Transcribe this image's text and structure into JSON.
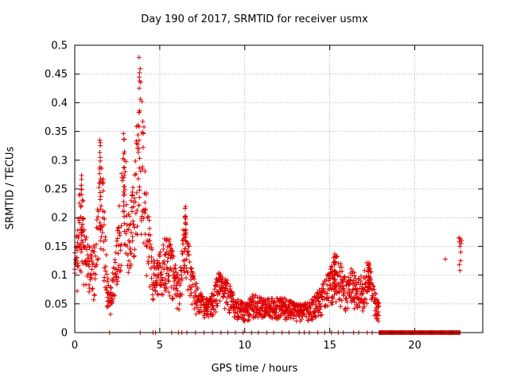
{
  "chart_data": {
    "type": "scatter",
    "title": "Day 190 of 2017, SRMTID for receiver usmx",
    "xlabel": "GPS time / hours",
    "ylabel": "SRMTID / TECUs",
    "xlim": [
      0,
      24
    ],
    "ylim": [
      0,
      0.5
    ],
    "grid": true,
    "marker": "+",
    "color": "#dd0000",
    "xticks": [
      0,
      5,
      10,
      15,
      20
    ],
    "yticks": [
      0,
      0.05,
      0.1,
      0.15,
      0.2,
      0.25,
      0.3,
      0.35,
      0.4,
      0.45,
      0.5
    ],
    "xtick_labels": [
      "0",
      "5",
      "10",
      "15",
      "20"
    ],
    "ytick_labels": [
      "0",
      "0.05",
      "0.1",
      "0.15",
      "0.2",
      "0.25",
      "0.3",
      "0.35",
      "0.4",
      "0.45",
      "0.5"
    ],
    "envelope": [
      [
        0.0,
        0.14
      ],
      [
        0.2,
        0.2
      ],
      [
        0.4,
        0.3
      ],
      [
        0.6,
        0.18
      ],
      [
        0.9,
        0.15
      ],
      [
        1.2,
        0.16
      ],
      [
        1.5,
        0.34
      ],
      [
        1.7,
        0.26
      ],
      [
        1.9,
        0.1
      ],
      [
        2.1,
        0.08
      ],
      [
        2.3,
        0.12
      ],
      [
        2.6,
        0.22
      ],
      [
        2.9,
        0.37
      ],
      [
        3.2,
        0.2
      ],
      [
        3.5,
        0.28
      ],
      [
        3.8,
        0.48
      ],
      [
        4.0,
        0.4
      ],
      [
        4.2,
        0.26
      ],
      [
        4.5,
        0.15
      ],
      [
        4.8,
        0.12
      ],
      [
        5.1,
        0.15
      ],
      [
        5.5,
        0.18
      ],
      [
        5.9,
        0.12
      ],
      [
        6.2,
        0.1
      ],
      [
        6.5,
        0.24
      ],
      [
        6.8,
        0.12
      ],
      [
        7.2,
        0.08
      ],
      [
        7.6,
        0.06
      ],
      [
        8.0,
        0.06
      ],
      [
        8.5,
        0.11
      ],
      [
        9.0,
        0.09
      ],
      [
        9.5,
        0.06
      ],
      [
        10.0,
        0.05
      ],
      [
        10.5,
        0.07
      ],
      [
        11.0,
        0.06
      ],
      [
        11.5,
        0.06
      ],
      [
        12.0,
        0.06
      ],
      [
        12.5,
        0.06
      ],
      [
        13.0,
        0.05
      ],
      [
        13.5,
        0.05
      ],
      [
        14.0,
        0.06
      ],
      [
        14.5,
        0.08
      ],
      [
        15.0,
        0.11
      ],
      [
        15.3,
        0.14
      ],
      [
        15.7,
        0.12
      ],
      [
        16.0,
        0.09
      ],
      [
        16.3,
        0.12
      ],
      [
        16.6,
        0.09
      ],
      [
        17.0,
        0.11
      ],
      [
        17.3,
        0.13
      ],
      [
        17.6,
        0.08
      ],
      [
        17.9,
        0.05
      ]
    ],
    "zero_hours": [
      2.05,
      3.85,
      4.6,
      4.75,
      5.7,
      6.1,
      6.3,
      6.6,
      7.1,
      7.6,
      8.1,
      8.6,
      9.0,
      9.45,
      9.9,
      10.4,
      10.8,
      11.3,
      11.7,
      12.2,
      12.6,
      13.2,
      13.5,
      13.8,
      14.3,
      14.7,
      15.1,
      15.5,
      15.8,
      16.4,
      16.7,
      17.2,
      17.5
    ],
    "dense_zero_range": [
      17.9,
      22.7
    ],
    "late_points": [
      [
        21.8,
        0.128
      ],
      [
        22.6,
        0.165
      ],
      [
        22.62,
        0.158
      ],
      [
        22.65,
        0.15
      ],
      [
        22.68,
        0.163
      ],
      [
        22.7,
        0.14
      ],
      [
        22.72,
        0.155
      ],
      [
        22.62,
        0.118
      ],
      [
        22.66,
        0.108
      ],
      [
        22.7,
        0.125
      ],
      [
        22.75,
        0.16
      ]
    ]
  }
}
